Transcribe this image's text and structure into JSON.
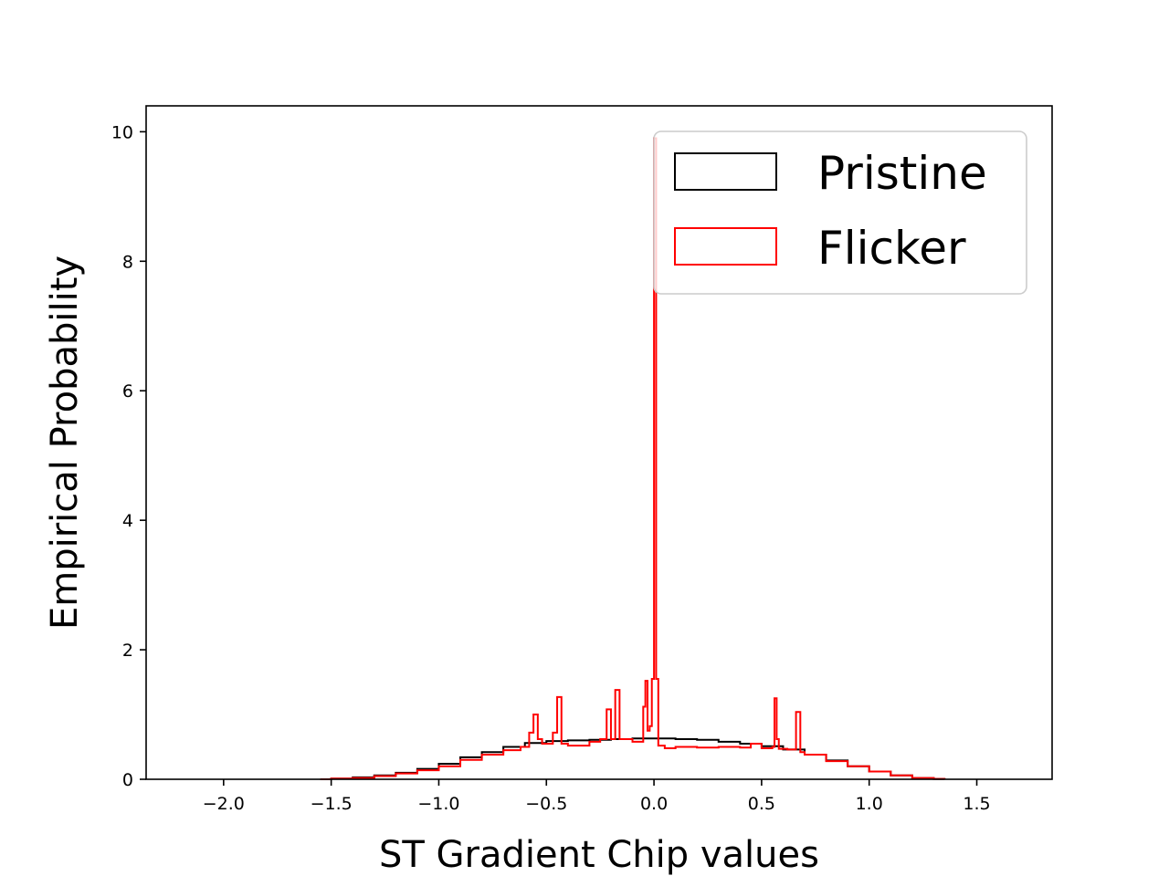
{
  "chart_data": {
    "type": "histogram",
    "xlabel": "ST Gradient Chip values",
    "ylabel": "Empirical Probability",
    "xlim": [
      -2.36,
      1.85
    ],
    "ylim": [
      0,
      10.4
    ],
    "x_ticks": [
      -2.0,
      -1.5,
      -1.0,
      -0.5,
      0.0,
      0.5,
      1.0,
      1.5
    ],
    "x_tick_labels": [
      "−2.0",
      "−1.5",
      "−1.0",
      "−0.5",
      "0.0",
      "0.5",
      "1.0",
      "1.5"
    ],
    "y_ticks": [
      0,
      2,
      4,
      6,
      8,
      10
    ],
    "y_tick_labels": [
      "0",
      "2",
      "4",
      "6",
      "8",
      "10"
    ],
    "grid": false,
    "legend_position": "top-right",
    "series": [
      {
        "name": "Pristine",
        "color": "#000000",
        "style": "step-outline",
        "x": [
          -1.55,
          -1.5,
          -1.4,
          -1.3,
          -1.2,
          -1.1,
          -1.0,
          -0.9,
          -0.8,
          -0.7,
          -0.6,
          -0.5,
          -0.4,
          -0.3,
          -0.2,
          -0.1,
          0.0,
          0.1,
          0.2,
          0.3,
          0.4,
          0.5,
          0.6,
          0.7,
          0.8,
          0.9,
          1.0,
          1.1,
          1.2,
          1.3,
          1.35
        ],
        "y": [
          0.0,
          0.01,
          0.03,
          0.06,
          0.1,
          0.16,
          0.24,
          0.34,
          0.42,
          0.5,
          0.56,
          0.59,
          0.6,
          0.61,
          0.62,
          0.63,
          0.63,
          0.62,
          0.61,
          0.58,
          0.55,
          0.51,
          0.46,
          0.38,
          0.29,
          0.2,
          0.12,
          0.06,
          0.02,
          0.005,
          0.0
        ]
      },
      {
        "name": "Flicker",
        "color": "#ff0000",
        "style": "step-outline",
        "x": [
          -1.55,
          -1.5,
          -1.4,
          -1.3,
          -1.2,
          -1.1,
          -1.0,
          -0.9,
          -0.8,
          -0.7,
          -0.62,
          -0.58,
          -0.56,
          -0.54,
          -0.52,
          -0.47,
          -0.45,
          -0.43,
          -0.4,
          -0.3,
          -0.25,
          -0.22,
          -0.2,
          -0.18,
          -0.16,
          -0.1,
          -0.05,
          -0.04,
          -0.03,
          -0.02,
          -0.01,
          0.0,
          0.01,
          0.02,
          0.05,
          0.1,
          0.2,
          0.3,
          0.4,
          0.45,
          0.5,
          0.55,
          0.56,
          0.57,
          0.58,
          0.62,
          0.66,
          0.68,
          0.7,
          0.8,
          0.9,
          1.0,
          1.1,
          1.2,
          1.3,
          1.35
        ],
        "y": [
          0.0,
          0.01,
          0.02,
          0.05,
          0.09,
          0.14,
          0.2,
          0.3,
          0.38,
          0.45,
          0.5,
          0.72,
          1.0,
          0.62,
          0.55,
          0.72,
          1.27,
          0.55,
          0.52,
          0.58,
          0.62,
          1.08,
          0.62,
          1.38,
          0.62,
          0.58,
          1.12,
          1.52,
          0.75,
          0.82,
          1.55,
          9.9,
          1.55,
          0.52,
          0.48,
          0.5,
          0.49,
          0.5,
          0.49,
          0.55,
          0.48,
          0.5,
          1.25,
          0.62,
          0.47,
          0.46,
          1.04,
          0.42,
          0.38,
          0.28,
          0.2,
          0.12,
          0.06,
          0.02,
          0.005,
          0.0
        ]
      }
    ]
  }
}
